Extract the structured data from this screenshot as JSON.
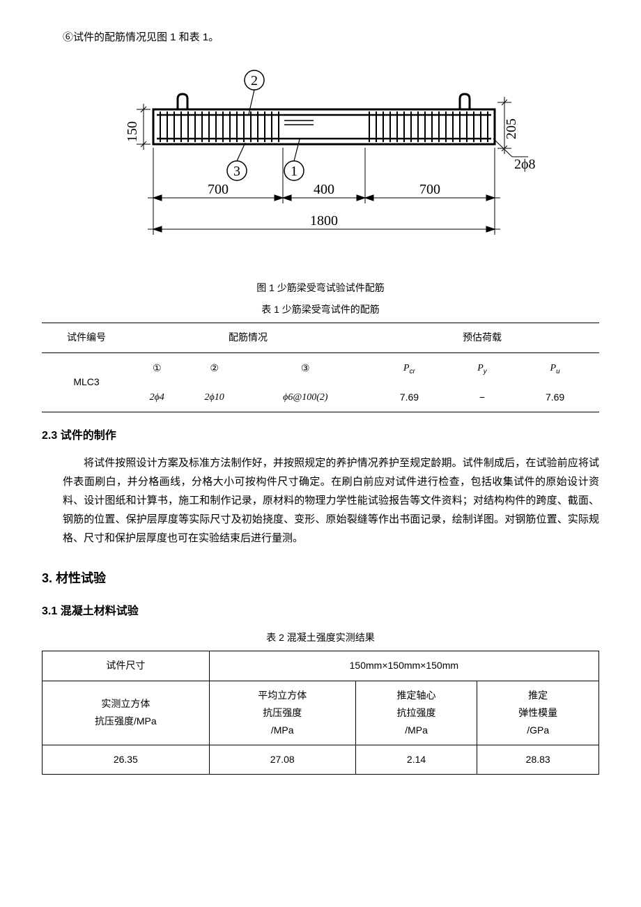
{
  "intro": "⑥试件的配筋情况见图 1 和表 1。",
  "diagram": {
    "callouts": {
      "c1": "1",
      "c2": "2",
      "c3": "3"
    },
    "dims": {
      "d150": "150",
      "d205": "205",
      "d700a": "700",
      "d400": "400",
      "d700b": "700",
      "d1800": "1800",
      "rebar_label": "2ϕ8"
    }
  },
  "fig1_caption": "图 1  少筋梁受弯试验试件配筋",
  "tbl1_caption": "表 1  少筋梁受弯试件的配筋",
  "t1": {
    "h_specimen": "试件编号",
    "h_rebar": "配筋情况",
    "h_load": "预估荷载",
    "sub": {
      "c1": "①",
      "c2": "②",
      "c3": "③",
      "pcr": "P",
      "pcr_sub": "cr",
      "py": "P",
      "py_sub": "y",
      "pu": "P",
      "pu_sub": "u"
    },
    "row": {
      "id": "MLC3",
      "r1": "2ϕ4",
      "r2": "2ϕ10",
      "r3": "ϕ6@100(2)",
      "pcr": "7.69",
      "py": "−",
      "pu": "7.69"
    }
  },
  "s23_title": "2.3  试件的制作",
  "s23_body": "将试件按照设计方案及标准方法制作好，并按照规定的养护情况养护至规定龄期。试件制成后，在试验前应将试件表面刷白，并分格画线，分格大小可按构件尺寸确定。在刷白前应对试件进行检查，包括收集试件的原始设计资料、设计图纸和计算书，施工和制作记录，原材料的物理力学性能试验报告等文件资料；对结构构件的跨度、截面、钢筋的位置、保护层厚度等实际尺寸及初始挠度、变形、原始裂缝等作出书面记录，绘制详图。对钢筋位置、实际规格、尺寸和保护层厚度也可在实验结束后进行量测。",
  "s3_title": "3.  材性试验",
  "s31_title": "3.1  混凝土材料试验",
  "tbl2_caption": "表 2  混凝土强度实测结果",
  "t2": {
    "r0c0": "试件尺寸",
    "r0c1": "150mm×150mm×150mm",
    "r1c0": "实测立方体\n抗压强度/MPa",
    "r1c1": "平均立方体\n抗压强度\n/MPa",
    "r1c2": "推定轴心\n抗拉强度\n/MPa",
    "r1c3": "推定\n弹性模量\n/GPa",
    "r2c0": "26.35",
    "r2c1": "27.08",
    "r2c2": "2.14",
    "r2c3": "28.83"
  }
}
